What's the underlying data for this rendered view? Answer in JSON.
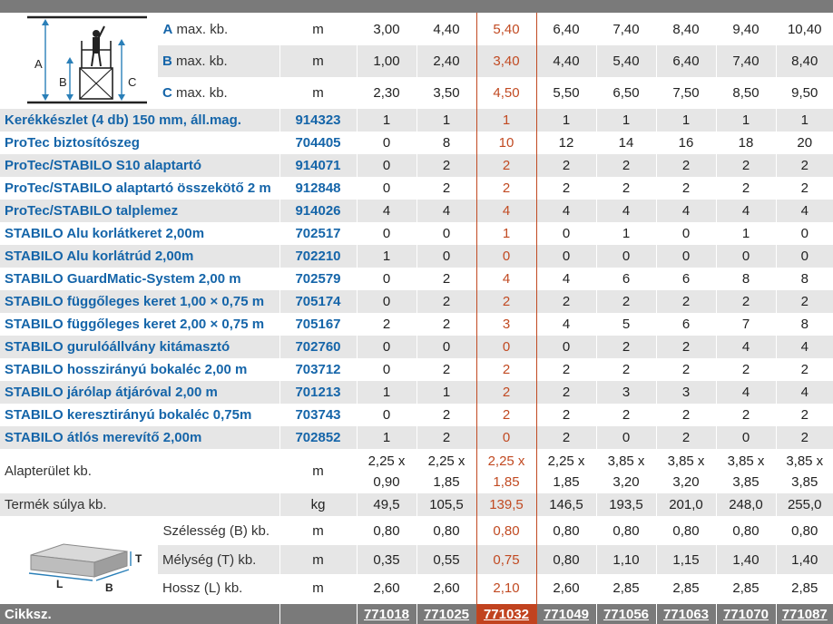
{
  "dims": [
    {
      "letter": "A",
      "label": "max. kb.",
      "unit": "m",
      "values": [
        "3,00",
        "4,40",
        "5,40",
        "6,40",
        "7,40",
        "8,40",
        "9,40",
        "10,40"
      ]
    },
    {
      "letter": "B",
      "label": "max. kb.",
      "unit": "m",
      "values": [
        "1,00",
        "2,40",
        "3,40",
        "4,40",
        "5,40",
        "6,40",
        "7,40",
        "8,40"
      ]
    },
    {
      "letter": "C",
      "label": "max. kb.",
      "unit": "m",
      "values": [
        "2,30",
        "3,50",
        "4,50",
        "5,50",
        "6,50",
        "7,50",
        "8,50",
        "9,50"
      ]
    }
  ],
  "items": [
    {
      "name": "Kerékkészlet (4 db) 150 mm, áll.mag.",
      "art": "914323",
      "values": [
        "1",
        "1",
        "1",
        "1",
        "1",
        "1",
        "1",
        "1"
      ]
    },
    {
      "name": "ProTec biztosítószeg",
      "art": "704405",
      "values": [
        "0",
        "8",
        "10",
        "12",
        "14",
        "16",
        "18",
        "20"
      ]
    },
    {
      "name": "ProTec/STABILO S10 alaptartó",
      "art": "914071",
      "values": [
        "0",
        "2",
        "2",
        "2",
        "2",
        "2",
        "2",
        "2"
      ]
    },
    {
      "name": "ProTec/STABILO alaptartó összekötő 2 m",
      "art": "912848",
      "values": [
        "0",
        "2",
        "2",
        "2",
        "2",
        "2",
        "2",
        "2"
      ]
    },
    {
      "name": "ProTec/STABILO talplemez",
      "art": "914026",
      "values": [
        "4",
        "4",
        "4",
        "4",
        "4",
        "4",
        "4",
        "4"
      ]
    },
    {
      "name": "STABILO Alu korlátkeret 2,00m",
      "art": "702517",
      "values": [
        "0",
        "0",
        "1",
        "0",
        "1",
        "0",
        "1",
        "0"
      ]
    },
    {
      "name": "STABILO Alu korlátrúd 2,00m",
      "art": "702210",
      "values": [
        "1",
        "0",
        "0",
        "0",
        "0",
        "0",
        "0",
        "0"
      ]
    },
    {
      "name": "STABILO GuardMatic-System 2,00 m",
      "art": "702579",
      "values": [
        "0",
        "2",
        "4",
        "4",
        "6",
        "6",
        "8",
        "8"
      ]
    },
    {
      "name": "STABILO függőleges keret 1,00 × 0,75 m",
      "art": "705174",
      "values": [
        "0",
        "2",
        "2",
        "2",
        "2",
        "2",
        "2",
        "2"
      ]
    },
    {
      "name": "STABILO függőleges keret 2,00 × 0,75 m",
      "art": "705167",
      "values": [
        "2",
        "2",
        "3",
        "4",
        "5",
        "6",
        "7",
        "8"
      ]
    },
    {
      "name": "STABILO gurulóállvány kitámasztó",
      "art": "702760",
      "values": [
        "0",
        "0",
        "0",
        "0",
        "2",
        "2",
        "4",
        "4"
      ]
    },
    {
      "name": "STABILO hosszirányú bokaléc 2,00 m",
      "art": "703712",
      "values": [
        "0",
        "2",
        "2",
        "2",
        "2",
        "2",
        "2",
        "2"
      ]
    },
    {
      "name": "STABILO járólap átjáróval 2,00 m",
      "art": "701213",
      "values": [
        "1",
        "1",
        "2",
        "2",
        "3",
        "3",
        "4",
        "4"
      ]
    },
    {
      "name": "STABILO keresztirányú bokaléc 0,75m",
      "art": "703743",
      "values": [
        "0",
        "2",
        "2",
        "2",
        "2",
        "2",
        "2",
        "2"
      ]
    },
    {
      "name": "STABILO átlós merevítő 2,00m",
      "art": "702852",
      "values": [
        "1",
        "2",
        "0",
        "2",
        "0",
        "2",
        "0",
        "2"
      ]
    }
  ],
  "area": {
    "label": "Alapterület kb.",
    "unit": "m",
    "values": [
      {
        "a": "2,25 x",
        "b": "0,90"
      },
      {
        "a": "2,25 x",
        "b": "1,85"
      },
      {
        "a": "2,25 x",
        "b": "1,85"
      },
      {
        "a": "2,25 x",
        "b": "1,85"
      },
      {
        "a": "3,85 x",
        "b": "3,20"
      },
      {
        "a": "3,85 x",
        "b": "3,20"
      },
      {
        "a": "3,85 x",
        "b": "3,85"
      },
      {
        "a": "3,85 x",
        "b": "3,85"
      }
    ]
  },
  "weight": {
    "label": "Termék súlya kb.",
    "unit": "kg",
    "values": [
      "49,5",
      "105,5",
      "139,5",
      "146,5",
      "193,5",
      "201,0",
      "248,0",
      "255,0"
    ]
  },
  "pack": [
    {
      "label": "Szélesség (B) kb.",
      "unit": "m",
      "values": [
        "0,80",
        "0,80",
        "0,80",
        "0,80",
        "0,80",
        "0,80",
        "0,80",
        "0,80"
      ]
    },
    {
      "label": "Mélység (T) kb.",
      "unit": "m",
      "values": [
        "0,35",
        "0,55",
        "0,75",
        "0,80",
        "1,10",
        "1,15",
        "1,40",
        "1,40"
      ]
    },
    {
      "label": "Hossz (L) kb.",
      "unit": "m",
      "values": [
        "2,60",
        "2,60",
        "2,10",
        "2,60",
        "2,85",
        "2,85",
        "2,85",
        "2,85"
      ]
    }
  ],
  "footer": {
    "label": "Cikksz.",
    "links": [
      "771018",
      "771025",
      "771032",
      "771049",
      "771056",
      "771063",
      "771070",
      "771087"
    ]
  },
  "highlight_index": 2,
  "diagram1": {
    "labels": [
      "A",
      "B",
      "C"
    ]
  },
  "diagram2": {
    "labels": [
      "T",
      "L",
      "B"
    ]
  },
  "colors": {
    "accent": "#c1431f",
    "link": "#1565a9",
    "band": "#e6e6e6",
    "bar": "#7a7a7a"
  }
}
